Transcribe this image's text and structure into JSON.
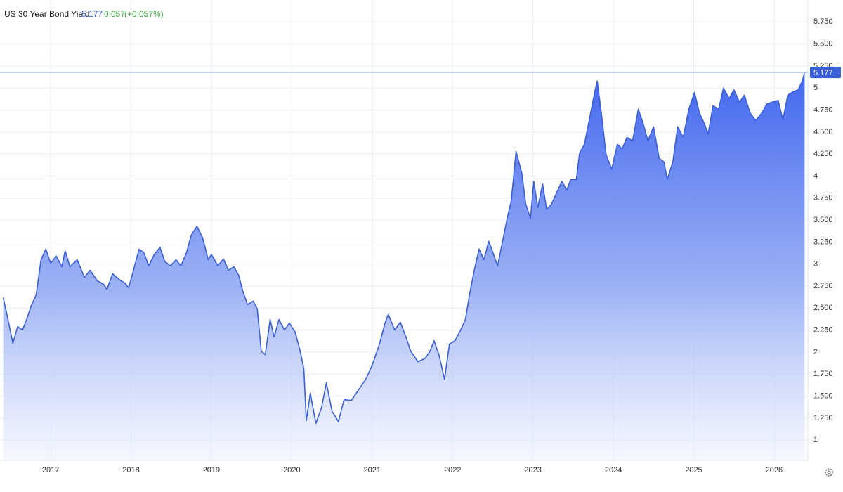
{
  "chart_data": {
    "type": "area",
    "title": "US 30 Year Bond Yield",
    "change": 0.057,
    "change_percent": "(+0.057%)",
    "color": "#3b5fd9",
    "grid": true,
    "xlim": [
      2016.37,
      2026.42
    ],
    "ylim": [
      0.77,
      6
    ],
    "xticks": [
      2017,
      2018,
      2019,
      2020,
      2021,
      2022,
      2023,
      2024,
      2025,
      2026
    ],
    "yticks": [
      {
        "value": 5.75,
        "label": "5.750"
      },
      {
        "value": 5.5,
        "label": "5.500"
      },
      {
        "value": 5.25,
        "label": "5.250"
      },
      5,
      {
        "value": 4.75,
        "label": "4.750"
      },
      {
        "value": 4.5,
        "label": "4.500"
      },
      {
        "value": 4.25,
        "label": "4.250"
      },
      4,
      {
        "value": 3.75,
        "label": "3.750"
      },
      {
        "value": 3.5,
        "label": "3.500"
      },
      {
        "value": 3.25,
        "label": "3.250"
      },
      3,
      {
        "value": 2.75,
        "label": "2.750"
      },
      {
        "value": 2.5,
        "label": "2.500"
      },
      {
        "value": 2.25,
        "label": "2.250"
      },
      2,
      {
        "value": 1.75,
        "label": "1.750"
      },
      {
        "value": 1.5,
        "label": "1.500"
      },
      {
        "value": 1.25,
        "label": "1.250"
      },
      1
    ],
    "x": [
      2016.41,
      2016.46,
      2016.53,
      2016.59,
      2016.65,
      2016.7,
      2016.76,
      2016.82,
      2016.88,
      2016.94,
      2017.0,
      2017.07,
      2017.14,
      2017.18,
      2017.24,
      2017.33,
      2017.42,
      2017.49,
      2017.58,
      2017.66,
      2017.7,
      2017.77,
      2017.86,
      2017.93,
      2017.97,
      2018.03,
      2018.1,
      2018.16,
      2018.22,
      2018.29,
      2018.36,
      2018.42,
      2018.49,
      2018.56,
      2018.62,
      2018.69,
      2018.75,
      2018.82,
      2018.89,
      2018.96,
      2019.0,
      2019.08,
      2019.15,
      2019.21,
      2019.28,
      2019.34,
      2019.39,
      2019.45,
      2019.52,
      2019.57,
      2019.62,
      2019.67,
      2019.73,
      2019.78,
      2019.84,
      2019.91,
      2019.97,
      2020.04,
      2020.1,
      2020.15,
      2020.18,
      2020.23,
      2020.3,
      2020.37,
      2020.43,
      2020.5,
      2020.58,
      2020.65,
      2020.74,
      2020.83,
      2020.92,
      2021.0,
      2021.09,
      2021.16,
      2021.2,
      2021.28,
      2021.35,
      2021.42,
      2021.48,
      2021.57,
      2021.66,
      2021.72,
      2021.77,
      2021.83,
      2021.9,
      2021.96,
      2022.03,
      2022.1,
      2022.16,
      2022.21,
      2022.27,
      2022.33,
      2022.39,
      2022.45,
      2022.51,
      2022.56,
      2022.62,
      2022.68,
      2022.73,
      2022.79,
      2022.86,
      2022.91,
      2022.97,
      2023.01,
      2023.06,
      2023.12,
      2023.17,
      2023.23,
      2023.29,
      2023.36,
      2023.42,
      2023.47,
      2023.54,
      2023.58,
      2023.64,
      2023.71,
      2023.77,
      2023.8,
      2023.85,
      2023.91,
      2023.98,
      2024.05,
      2024.11,
      2024.17,
      2024.24,
      2024.31,
      2024.37,
      2024.43,
      2024.5,
      2024.57,
      2024.63,
      2024.67,
      2024.74,
      2024.8,
      2024.87,
      2024.94,
      2025.01,
      2025.07,
      2025.13,
      2025.18,
      2025.24,
      2025.31,
      2025.37,
      2025.44,
      2025.5,
      2025.57,
      2025.63,
      2025.7,
      2025.77,
      2025.85,
      2025.91,
      2025.98,
      2026.05,
      2026.11,
      2026.17,
      2026.24,
      2026.3,
      2026.35,
      2026.38
    ],
    "values": [
      2.62,
      2.41,
      2.1,
      2.29,
      2.25,
      2.37,
      2.53,
      2.65,
      3.05,
      3.17,
      3.01,
      3.09,
      2.97,
      3.15,
      2.97,
      3.05,
      2.85,
      2.93,
      2.81,
      2.77,
      2.71,
      2.89,
      2.82,
      2.78,
      2.73,
      2.93,
      3.17,
      3.13,
      2.98,
      3.11,
      3.19,
      3.03,
      2.98,
      3.05,
      2.98,
      3.13,
      3.33,
      3.43,
      3.3,
      3.05,
      3.11,
      2.98,
      3.06,
      2.93,
      2.97,
      2.87,
      2.69,
      2.54,
      2.58,
      2.49,
      2.01,
      1.97,
      2.37,
      2.17,
      2.37,
      2.25,
      2.33,
      2.23,
      2.03,
      1.81,
      1.22,
      1.53,
      1.19,
      1.37,
      1.65,
      1.33,
      1.21,
      1.46,
      1.45,
      1.57,
      1.69,
      1.85,
      2.09,
      2.33,
      2.43,
      2.25,
      2.34,
      2.17,
      2.01,
      1.89,
      1.93,
      2.01,
      2.13,
      1.97,
      1.69,
      2.09,
      2.13,
      2.25,
      2.37,
      2.65,
      2.93,
      3.17,
      3.05,
      3.26,
      3.11,
      2.98,
      3.25,
      3.52,
      3.72,
      4.28,
      4.04,
      3.68,
      3.52,
      3.94,
      3.64,
      3.91,
      3.62,
      3.68,
      3.8,
      3.94,
      3.84,
      3.96,
      3.96,
      4.26,
      4.36,
      4.68,
      4.96,
      5.08,
      4.72,
      4.24,
      4.08,
      4.36,
      4.31,
      4.44,
      4.4,
      4.76,
      4.6,
      4.4,
      4.56,
      4.2,
      4.16,
      3.96,
      4.16,
      4.56,
      4.44,
      4.76,
      4.95,
      4.72,
      4.6,
      4.48,
      4.8,
      4.76,
      5.0,
      4.88,
      4.98,
      4.84,
      4.92,
      4.72,
      4.63,
      4.72,
      4.82,
      4.84,
      4.86,
      4.64,
      4.92,
      4.96,
      4.98,
      5.08,
      5.177
    ]
  }
}
